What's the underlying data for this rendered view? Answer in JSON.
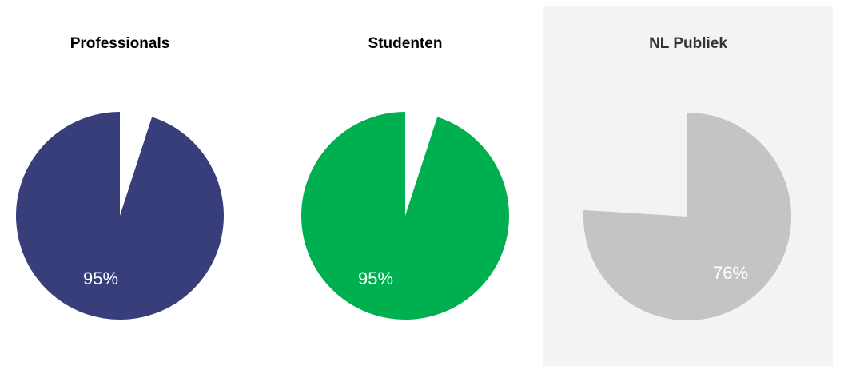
{
  "chart_data": [
    {
      "type": "pie",
      "title": "Professionals",
      "values": [
        95,
        5
      ],
      "data_label": "95%",
      "colors": [
        "#373e7a",
        "#ffffff"
      ],
      "label_color": "#ffffff"
    },
    {
      "type": "pie",
      "title": "Studenten",
      "values": [
        95,
        5
      ],
      "data_label": "95%",
      "colors": [
        "#00b050",
        "#ffffff"
      ],
      "label_color": "#ffffff"
    },
    {
      "type": "pie",
      "title": "NL Publiek",
      "values": [
        76,
        24
      ],
      "data_label": "76%",
      "colors": [
        "#c4c4c4",
        "#f3f3f3"
      ],
      "label_color": "#ffffff",
      "background": "#f3f3f3"
    }
  ]
}
